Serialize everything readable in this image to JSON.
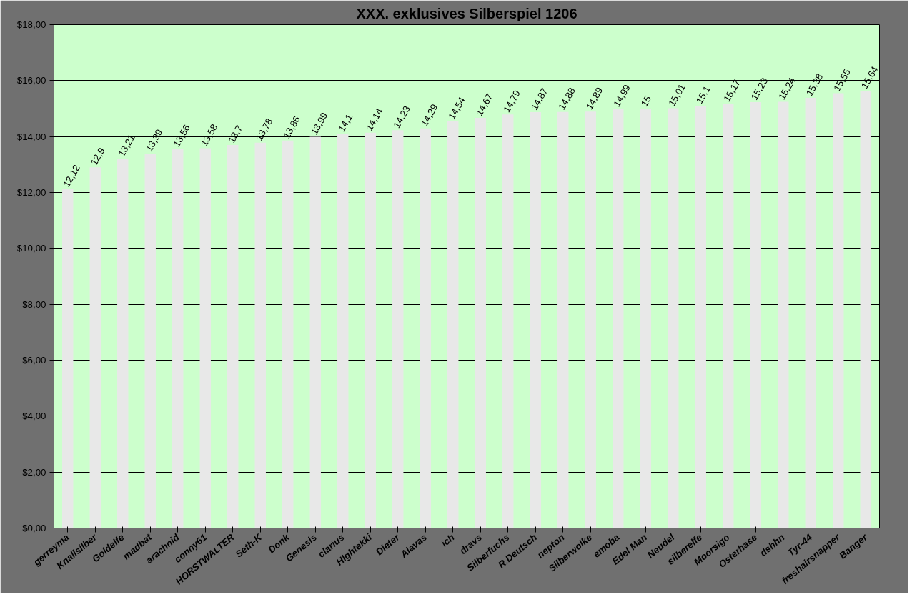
{
  "chart_data": {
    "type": "bar",
    "title": "XXX. exklusives Silberspiel 1206",
    "categories": [
      "gerreyma",
      "Knallsilber",
      "Goldelfe",
      "madbat",
      "arachnid",
      "conny61",
      "HORSTWALTER",
      "Seth-K",
      "Donk",
      "Genesis",
      "clarius",
      "HIghtekki",
      "Dieter",
      "Alavas",
      "ich",
      "dravs",
      "Silberfuchs",
      "R.Deutsch",
      "nepton",
      "Silberwolke",
      "emoba",
      "Edel Man",
      "Neudel",
      "silberelfe",
      "Moorsigo",
      "Osterhase",
      "dshhn",
      "Tyr-44",
      "freshairsnapper",
      "Banger"
    ],
    "values": [
      12.12,
      12.9,
      13.21,
      13.39,
      13.56,
      13.58,
      13.7,
      13.78,
      13.86,
      13.99,
      14.1,
      14.14,
      14.23,
      14.29,
      14.54,
      14.67,
      14.79,
      14.87,
      14.88,
      14.89,
      14.99,
      15,
      15.01,
      15.1,
      15.17,
      15.23,
      15.24,
      15.38,
      15.55,
      15.64
    ],
    "value_labels": [
      "12,12",
      "12,9",
      "13,21",
      "13,39",
      "13,56",
      "13,58",
      "13,7",
      "13,78",
      "13,86",
      "13,99",
      "14,1",
      "14,14",
      "14,23",
      "14,29",
      "14,54",
      "14,67",
      "14,79",
      "14,87",
      "14,88",
      "14,89",
      "14,99",
      "15",
      "15,01",
      "15,1",
      "15,17",
      "15,23",
      "15,24",
      "15,38",
      "15,55",
      "15,64"
    ],
    "color": "#e8e8e8",
    "ylim": [
      0,
      18
    ],
    "yticks": [
      {
        "value": 0,
        "label": "$0,00"
      },
      {
        "value": 2,
        "label": "$2,00"
      },
      {
        "value": 4,
        "label": "$4,00"
      },
      {
        "value": 6,
        "label": "$6,00"
      },
      {
        "value": 8,
        "label": "$8,00"
      },
      {
        "value": 10,
        "label": "$10,00"
      },
      {
        "value": 12,
        "label": "$12,00"
      },
      {
        "value": 14,
        "label": "$14,00"
      },
      {
        "value": 16,
        "label": "$16,00"
      },
      {
        "value": 18,
        "label": "$18,00"
      }
    ],
    "grid": "y"
  }
}
